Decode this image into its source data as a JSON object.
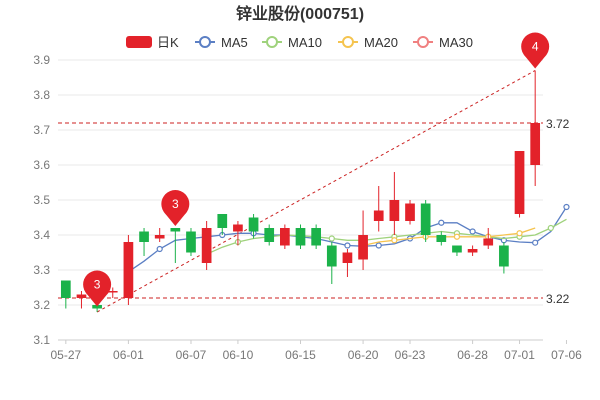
{
  "chart_data": {
    "type": "candlestick",
    "title": "锌业股份(000751)",
    "legend": {
      "placement": "top-center",
      "items": [
        {
          "name": "日K",
          "color": "#e3222a",
          "kind": "box"
        },
        {
          "name": "MA5",
          "color": "#5b7fc4",
          "kind": "circle"
        },
        {
          "name": "MA10",
          "color": "#9fd27c",
          "kind": "circle"
        },
        {
          "name": "MA20",
          "color": "#f5c44f",
          "kind": "circle"
        },
        {
          "name": "MA30",
          "color": "#f08080",
          "kind": "circle"
        }
      ]
    },
    "ylim": [
      3.1,
      3.9
    ],
    "yticks": [
      "3.1",
      "3.2",
      "3.3",
      "3.4",
      "3.5",
      "3.6",
      "3.7",
      "3.8",
      "3.9"
    ],
    "xticks": [
      {
        "label": "05-27",
        "index": 0
      },
      {
        "label": "06-01",
        "index": 4
      },
      {
        "label": "06-07",
        "index": 8
      },
      {
        "label": "06-10",
        "index": 11
      },
      {
        "label": "06-15",
        "index": 15
      },
      {
        "label": "06-20",
        "index": 19
      },
      {
        "label": "06-23",
        "index": 22
      },
      {
        "label": "06-28",
        "index": 26
      },
      {
        "label": "07-01",
        "index": 29
      },
      {
        "label": "07-06",
        "index": 32
      }
    ],
    "candles": [
      {
        "o": 3.27,
        "c": 3.22,
        "h": 3.27,
        "l": 3.19
      },
      {
        "o": 3.22,
        "c": 3.23,
        "h": 3.24,
        "l": 3.19
      },
      {
        "o": 3.2,
        "c": 3.19,
        "h": 3.25,
        "l": 3.18
      },
      {
        "o": 3.24,
        "c": 3.24,
        "h": 3.25,
        "l": 3.22
      },
      {
        "o": 3.22,
        "c": 3.38,
        "h": 3.4,
        "l": 3.2
      },
      {
        "o": 3.41,
        "c": 3.38,
        "h": 3.42,
        "l": 3.34
      },
      {
        "o": 3.39,
        "c": 3.4,
        "h": 3.42,
        "l": 3.38
      },
      {
        "o": 3.42,
        "c": 3.41,
        "h": 3.42,
        "l": 3.32
      },
      {
        "o": 3.41,
        "c": 3.35,
        "h": 3.42,
        "l": 3.34
      },
      {
        "o": 3.32,
        "c": 3.42,
        "h": 3.44,
        "l": 3.3
      },
      {
        "o": 3.46,
        "c": 3.42,
        "h": 3.46,
        "l": 3.4
      },
      {
        "o": 3.41,
        "c": 3.43,
        "h": 3.44,
        "l": 3.37
      },
      {
        "o": 3.45,
        "c": 3.41,
        "h": 3.46,
        "l": 3.39
      },
      {
        "o": 3.42,
        "c": 3.38,
        "h": 3.43,
        "l": 3.37
      },
      {
        "o": 3.37,
        "c": 3.42,
        "h": 3.43,
        "l": 3.36
      },
      {
        "o": 3.42,
        "c": 3.37,
        "h": 3.43,
        "l": 3.36
      },
      {
        "o": 3.42,
        "c": 3.37,
        "h": 3.43,
        "l": 3.36
      },
      {
        "o": 3.37,
        "c": 3.31,
        "h": 3.38,
        "l": 3.26
      },
      {
        "o": 3.32,
        "c": 3.35,
        "h": 3.36,
        "l": 3.28
      },
      {
        "o": 3.33,
        "c": 3.4,
        "h": 3.47,
        "l": 3.3
      },
      {
        "o": 3.44,
        "c": 3.47,
        "h": 3.54,
        "l": 3.41
      },
      {
        "o": 3.44,
        "c": 3.5,
        "h": 3.58,
        "l": 3.4
      },
      {
        "o": 3.44,
        "c": 3.49,
        "h": 3.5,
        "l": 3.43
      },
      {
        "o": 3.49,
        "c": 3.4,
        "h": 3.5,
        "l": 3.38
      },
      {
        "o": 3.4,
        "c": 3.38,
        "h": 3.41,
        "l": 3.37
      },
      {
        "o": 3.37,
        "c": 3.35,
        "h": 3.37,
        "l": 3.34
      },
      {
        "o": 3.35,
        "c": 3.36,
        "h": 3.37,
        "l": 3.34
      },
      {
        "o": 3.37,
        "c": 3.39,
        "h": 3.42,
        "l": 3.36
      },
      {
        "o": 3.37,
        "c": 3.31,
        "h": 3.38,
        "l": 3.29
      },
      {
        "o": 3.46,
        "c": 3.64,
        "h": 3.64,
        "l": 3.45
      },
      {
        "o": 3.6,
        "c": 3.72,
        "h": 3.87,
        "l": 3.54
      }
    ],
    "series": [
      {
        "name": "MA5",
        "color": "#5b7fc4",
        "start": 4,
        "values": [
          3.295,
          3.325,
          3.36,
          3.385,
          3.39,
          3.395,
          3.4,
          3.405,
          3.405,
          3.4,
          3.4,
          3.395,
          3.39,
          3.38,
          3.37,
          3.368,
          3.37,
          3.375,
          3.39,
          3.42,
          3.435,
          3.435,
          3.41,
          3.395,
          3.385,
          3.38,
          3.378,
          3.41,
          3.48
        ]
      },
      {
        "name": "MA10",
        "color": "#9fd27c",
        "start": 9,
        "values": [
          3.345,
          3.365,
          3.38,
          3.39,
          3.395,
          3.4,
          3.398,
          3.395,
          3.39,
          3.385,
          3.385,
          3.39,
          3.395,
          3.4,
          3.405,
          3.41,
          3.405,
          3.4,
          3.395,
          3.39,
          3.395,
          3.4,
          3.42,
          3.445
        ]
      },
      {
        "name": "MA20",
        "color": "#f5c44f",
        "start": 19,
        "values": [
          3.37,
          3.38,
          3.385,
          3.39,
          3.395,
          3.395,
          3.395,
          3.395,
          3.395,
          3.4,
          3.405,
          3.42
        ]
      }
    ],
    "reference_lines": [
      {
        "value": 3.72,
        "label": "3.72",
        "color": "#cc2222"
      },
      {
        "value": 3.22,
        "label": "3.22",
        "color": "#cc2222"
      }
    ],
    "markers": [
      {
        "label": "3",
        "index": 2,
        "value": 3.19
      },
      {
        "label": "3",
        "index": 7,
        "value": 3.42
      },
      {
        "label": "4",
        "index": 30,
        "value": 3.87
      }
    ],
    "trend_line": {
      "from": {
        "index": 2,
        "value": 3.18
      },
      "to": {
        "index": 30,
        "value": 3.87
      }
    },
    "colors": {
      "up": "#e3222a",
      "down": "#1bb24a",
      "grid": "#e8e8e8",
      "axis_text": "#777777",
      "title": "#333333"
    }
  }
}
